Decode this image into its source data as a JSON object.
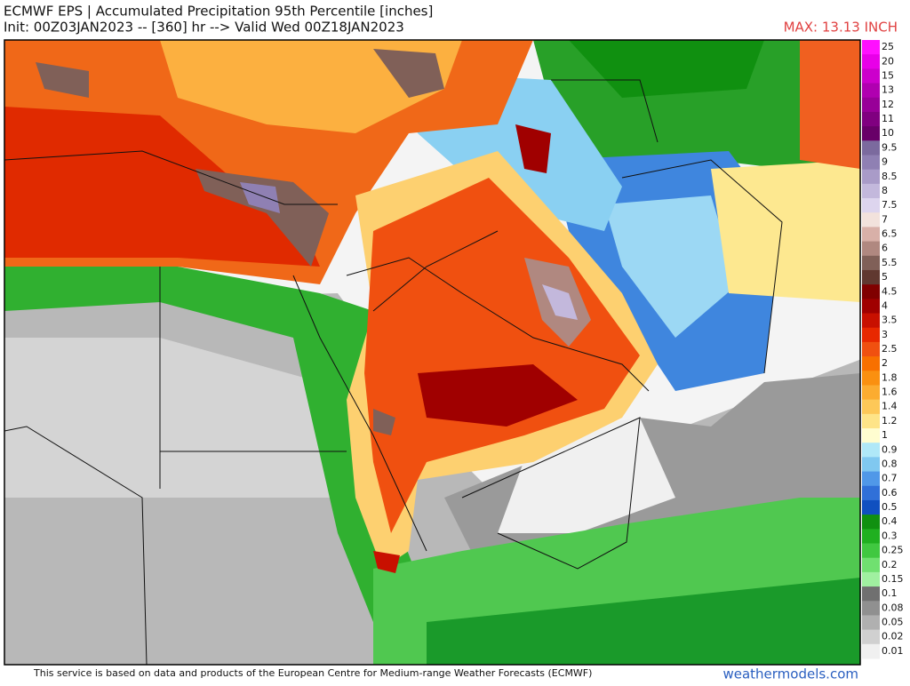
{
  "header": {
    "title": "ECMWF EPS | Accumulated Precipitation 95th Percentile [inches]",
    "init": "Init: 00Z03JAN2023 -- [360] hr --> Valid Wed 00Z18JAN2023",
    "max": "MAX: 13.13 INCH"
  },
  "legend": {
    "items": [
      {
        "label": "25",
        "color": "#ff10ff"
      },
      {
        "label": "20",
        "color": "#e800e8"
      },
      {
        "label": "15",
        "color": "#cc00cc"
      },
      {
        "label": "13",
        "color": "#b000b0"
      },
      {
        "label": "12",
        "color": "#980098"
      },
      {
        "label": "11",
        "color": "#800080"
      },
      {
        "label": "10",
        "color": "#680068"
      },
      {
        "label": "9.5",
        "color": "#7b6a9e"
      },
      {
        "label": "9",
        "color": "#8f80b3"
      },
      {
        "label": "8.5",
        "color": "#a99bc8"
      },
      {
        "label": "8",
        "color": "#c3b8dc"
      },
      {
        "label": "7.5",
        "color": "#ddd5ee"
      },
      {
        "label": "7",
        "color": "#f2e2dc"
      },
      {
        "label": "6.5",
        "color": "#d8b0a8"
      },
      {
        "label": "6",
        "color": "#b08880"
      },
      {
        "label": "5.5",
        "color": "#806058"
      },
      {
        "label": "5",
        "color": "#603830"
      },
      {
        "label": "4.5",
        "color": "#800000"
      },
      {
        "label": "4",
        "color": "#a00000"
      },
      {
        "label": "3.5",
        "color": "#c81000"
      },
      {
        "label": "3",
        "color": "#e82800"
      },
      {
        "label": "2.5",
        "color": "#f05010"
      },
      {
        "label": "2",
        "color": "#f87000"
      },
      {
        "label": "1.8",
        "color": "#fa9010"
      },
      {
        "label": "1.6",
        "color": "#fcac30"
      },
      {
        "label": "1.4",
        "color": "#fdc858"
      },
      {
        "label": "1.2",
        "color": "#fee488"
      },
      {
        "label": "1",
        "color": "#fffdd0"
      },
      {
        "label": "0.9",
        "color": "#b0e8f8"
      },
      {
        "label": "0.8",
        "color": "#80c8f0"
      },
      {
        "label": "0.7",
        "color": "#5098e8"
      },
      {
        "label": "0.6",
        "color": "#3070d8"
      },
      {
        "label": "0.5",
        "color": "#1050c0"
      },
      {
        "label": "0.4",
        "color": "#109010"
      },
      {
        "label": "0.3",
        "color": "#20b020"
      },
      {
        "label": "0.25",
        "color": "#40c840"
      },
      {
        "label": "0.2",
        "color": "#70e070"
      },
      {
        "label": "0.15",
        "color": "#a0f0a0"
      },
      {
        "label": "0.1",
        "color": "#707070"
      },
      {
        "label": "0.08",
        "color": "#909090"
      },
      {
        "label": "0.05",
        "color": "#b0b0b0"
      },
      {
        "label": "0.02",
        "color": "#d0d0d0"
      },
      {
        "label": "0.01",
        "color": "#f0f0f0"
      }
    ]
  },
  "footer": {
    "credit": "This service is based on data and products of the European Centre for Medium-range Weather Forecasts (ECMWF)",
    "site": "weathermodels.com"
  }
}
